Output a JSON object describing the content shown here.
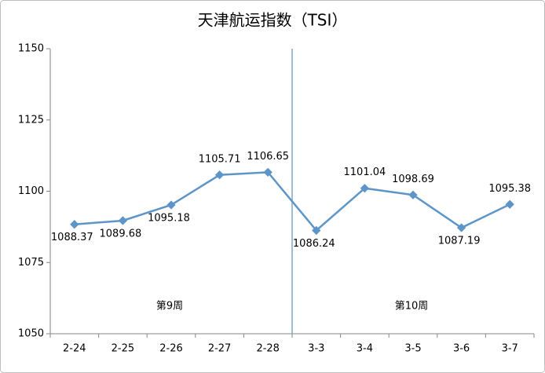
{
  "chart_data": {
    "type": "line",
    "title": "天津航运指数（TSI）",
    "categories": [
      "2-24",
      "2-25",
      "2-26",
      "2-27",
      "2-28",
      "3-3",
      "3-4",
      "3-5",
      "3-6",
      "3-7"
    ],
    "values": [
      1088.37,
      1089.68,
      1095.18,
      1105.71,
      1106.65,
      1086.24,
      1101.04,
      1098.69,
      1087.19,
      1095.38
    ],
    "color": "#5e95c8",
    "ylim": [
      1050,
      1150
    ],
    "yticks": [
      1050,
      1075,
      1100,
      1125,
      1150
    ],
    "grid": false,
    "annotations": [
      "第9周",
      "第10周"
    ]
  }
}
